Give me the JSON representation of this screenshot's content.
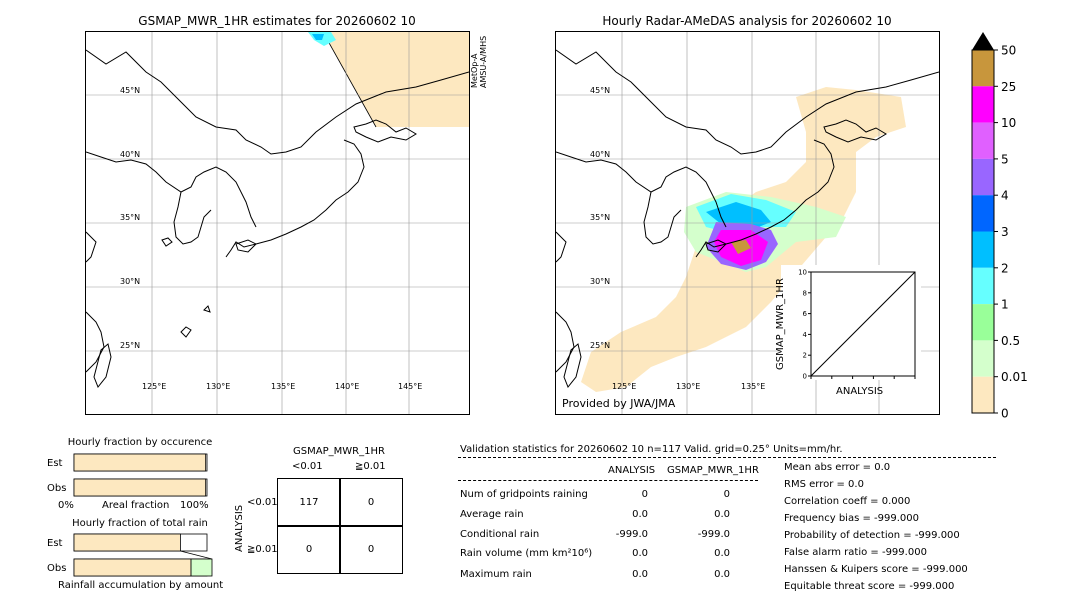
{
  "left_map": {
    "title": "GSMAP_MWR_1HR estimates for 20260602 10",
    "sat_label_line1": "MetOp-A",
    "sat_label_line2": "AMSU-A/MHS",
    "lat_labels": [
      "45°N",
      "40°N",
      "35°N",
      "30°N",
      "25°N"
    ],
    "lon_labels": [
      "125°E",
      "130°E",
      "135°E",
      "140°E",
      "145°E"
    ]
  },
  "right_map": {
    "title": "Hourly Radar-AMeDAS analysis for 20260602 10",
    "credit": "Provided by JWA/JMA",
    "lat_labels": [
      "45°N",
      "40°N",
      "35°N",
      "30°N",
      "25°N"
    ],
    "lon_labels": [
      "125°E",
      "130°E",
      "135°E"
    ]
  },
  "colorbar": {
    "labels": [
      "50",
      "25",
      "10",
      "5",
      "4",
      "3",
      "2",
      "1",
      "0.5",
      "0.01",
      "0"
    ],
    "colors": [
      "#c8963c",
      "#ff00ff",
      "#e060ff",
      "#9966ff",
      "#0066ff",
      "#00bfff",
      "#66ffff",
      "#99ff99",
      "#d4ffcc",
      "#fde8c0"
    ]
  },
  "chart_data": [
    {
      "type": "scatter",
      "title": "",
      "xlabel": "ANALYSIS",
      "ylabel": "GSMAP_MWR_1HR",
      "xlim": [
        0,
        10
      ],
      "ylim": [
        0,
        10
      ],
      "x_ticks": [
        "0",
        "2",
        "4",
        "6",
        "8",
        "10"
      ],
      "y_ticks": [
        "0",
        "2",
        "4",
        "6",
        "8",
        "10"
      ],
      "diagonal": true,
      "points": []
    },
    {
      "type": "bar",
      "title": "Hourly fraction by occurence",
      "categories": [
        "Est",
        "Obs"
      ],
      "values": [
        0.99,
        0.99
      ],
      "x_ticks": [
        "0%",
        "Areal fraction",
        "100%"
      ]
    },
    {
      "type": "bar",
      "title": "Hourly fraction of total rain",
      "categories": [
        "Est",
        "Obs"
      ],
      "values": [
        0.8,
        0.88
      ],
      "footer": "Rainfall accumulation by amount"
    }
  ],
  "contingency": {
    "title": "GSMAP_MWR_1HR",
    "col_headers": [
      "<0.01",
      "≧0.01"
    ],
    "row_axis": "ANALYSIS",
    "row_headers": [
      "<0.01",
      "≧0.01"
    ],
    "cells": [
      [
        "117",
        "0"
      ],
      [
        "0",
        "0"
      ]
    ]
  },
  "validation": {
    "header": "Validation statistics for 20260602 10  n=117 Valid. grid=0.25° Units=mm/hr.",
    "col_analysis": "ANALYSIS",
    "col_gsmap": "GSMAP_MWR_1HR",
    "rows": [
      {
        "label": "Num of gridpoints raining",
        "analysis": "0",
        "gsmap": "0"
      },
      {
        "label": "Average rain",
        "analysis": "0.0",
        "gsmap": "0.0"
      },
      {
        "label": "Conditional rain",
        "analysis": "-999.0",
        "gsmap": "-999.0"
      },
      {
        "label": "Rain volume (mm km²10⁶)",
        "analysis": "0.0",
        "gsmap": "0.0"
      },
      {
        "label": "Maximum rain",
        "analysis": "0.0",
        "gsmap": "0.0"
      }
    ],
    "scores": [
      "Mean abs error =    0.0",
      "RMS error =    0.0",
      "Correlation coeff =  0.000",
      "Frequency bias = -999.000",
      "Probability of detection = -999.000",
      "False alarm ratio = -999.000",
      "Hanssen & Kuipers score = -999.000",
      "Equitable threat score = -999.000"
    ]
  }
}
